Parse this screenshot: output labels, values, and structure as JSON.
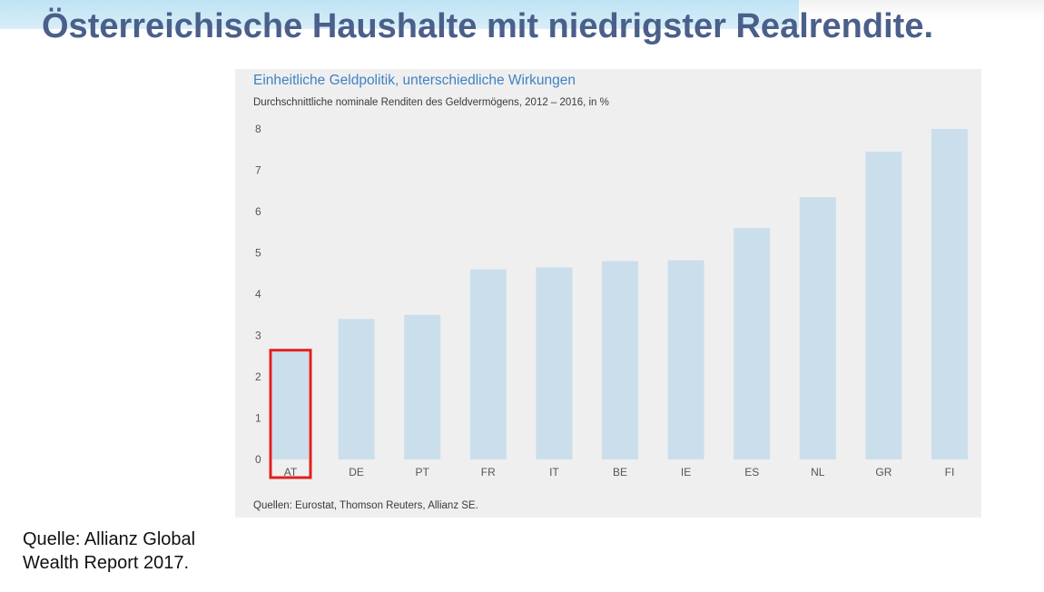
{
  "slide": {
    "title": "Österreichische Haushalte mit niedrigster Realrendite.",
    "source_line1": "Quelle: Allianz Global",
    "source_line2": "Wealth Report 2017."
  },
  "chart_data": {
    "type": "bar",
    "title": "Einheitliche Geldpolitik, unterschiedliche Wirkungen",
    "subtitle": "Durchschnittliche nominale Renditen des Geldvermögens, 2012 – 2016, in %",
    "source": "Quellen: Eurostat, Thomson Reuters, Allianz SE.",
    "categories": [
      "AT",
      "DE",
      "PT",
      "FR",
      "IT",
      "BE",
      "IE",
      "ES",
      "NL",
      "GR",
      "FI"
    ],
    "values": [
      2.6,
      3.4,
      3.5,
      4.6,
      4.65,
      4.8,
      4.82,
      5.6,
      6.35,
      7.45,
      8.0
    ],
    "ylim": [
      0,
      8
    ],
    "yticks": [
      0,
      1,
      2,
      3,
      4,
      5,
      6,
      7,
      8
    ],
    "highlight": "AT",
    "grid": false,
    "colors": {
      "bar": "#cbdeec",
      "highlight_outline": "#e0201f",
      "tick_label": "#555555",
      "title": "#3f82c1"
    }
  }
}
